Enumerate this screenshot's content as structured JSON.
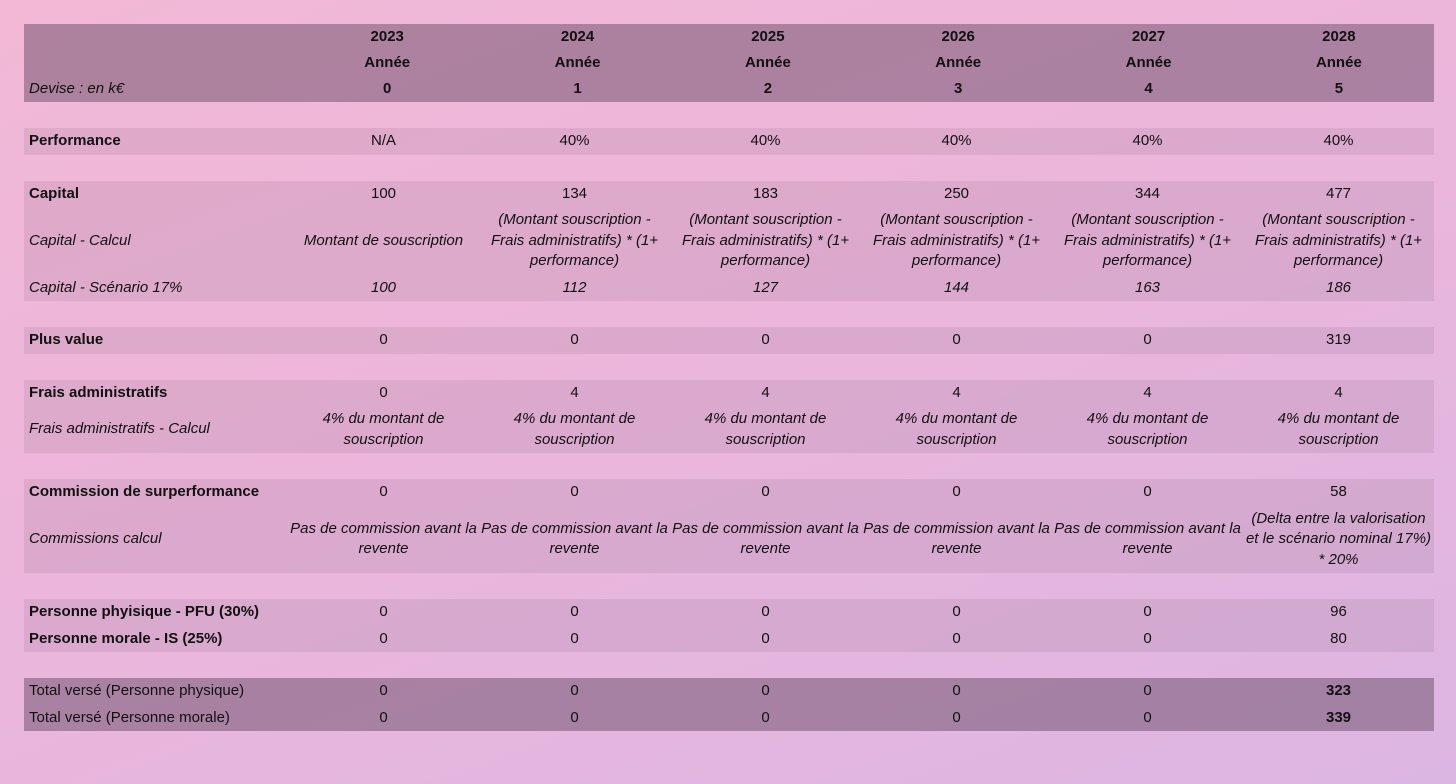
{
  "header": {
    "years": [
      "2023",
      "2024",
      "2025",
      "2026",
      "2027",
      "2028"
    ],
    "sublabels": [
      "Année",
      "Année",
      "Année",
      "Année",
      "Année",
      "Année"
    ],
    "label": "Devise : en k€",
    "periods": [
      "0",
      "1",
      "2",
      "3",
      "4",
      "5"
    ]
  },
  "sections": [
    {
      "rows": [
        {
          "label": "Performance",
          "values": [
            "N/A",
            "40%",
            "40%",
            "40%",
            "40%",
            "40%"
          ]
        }
      ]
    },
    {
      "rows": [
        {
          "label": "Capital",
          "values": [
            "100",
            "134",
            "183",
            "250",
            "344",
            "477"
          ]
        },
        {
          "label": "Capital - Calcul",
          "values": [
            "Montant de souscription",
            "(Montant souscription - Frais administratifs) * (1+ performance)",
            "(Montant souscription - Frais administratifs) * (1+ performance)",
            "(Montant souscription - Frais administratifs) * (1+ performance)",
            "(Montant souscription - Frais administratifs) * (1+ performance)",
            "(Montant souscription - Frais administratifs) * (1+ performance)"
          ]
        },
        {
          "label": "Capital - Scénario 17%",
          "values": [
            "100",
            "112",
            "127",
            "144",
            "163",
            "186"
          ]
        }
      ]
    },
    {
      "rows": [
        {
          "label": "Plus value",
          "values": [
            "0",
            "0",
            "0",
            "0",
            "0",
            "319"
          ]
        }
      ]
    },
    {
      "rows": [
        {
          "label": "Frais administratifs",
          "values": [
            "0",
            "4",
            "4",
            "4",
            "4",
            "4"
          ]
        },
        {
          "label": "Frais administratifs - Calcul",
          "values": [
            "4% du montant de souscription",
            "4% du montant de souscription",
            "4% du montant de souscription",
            "4% du montant de souscription",
            "4% du montant de souscription",
            "4% du montant de souscription"
          ]
        }
      ]
    },
    {
      "rows": [
        {
          "label": "Commission de surperformance",
          "values": [
            "0",
            "0",
            "0",
            "0",
            "0",
            "58"
          ]
        },
        {
          "label": "Commissions calcul",
          "values": [
            "Pas de commission avant la revente",
            "Pas de commission avant la revente",
            "Pas de commission avant la revente",
            "Pas de commission avant la revente",
            "Pas de commission avant la revente",
            "(Delta entre la valorisation et le scénario nominal 17%) * 20%"
          ]
        }
      ]
    },
    {
      "rows": [
        {
          "label": "Personne phyisique - PFU (30%)",
          "values": [
            "0",
            "0",
            "0",
            "0",
            "0",
            "96"
          ]
        },
        {
          "label": "Personne morale - IS (25%)",
          "values": [
            "0",
            "0",
            "0",
            "0",
            "0",
            "80"
          ]
        }
      ]
    },
    {
      "rows": [
        {
          "label": "Total versé (Personne physique)",
          "values": [
            "0",
            "0",
            "0",
            "0",
            "0",
            "323"
          ]
        },
        {
          "label": "Total versé (Personne morale)",
          "values": [
            "0",
            "0",
            "0",
            "0",
            "0",
            "339"
          ]
        }
      ]
    }
  ]
}
